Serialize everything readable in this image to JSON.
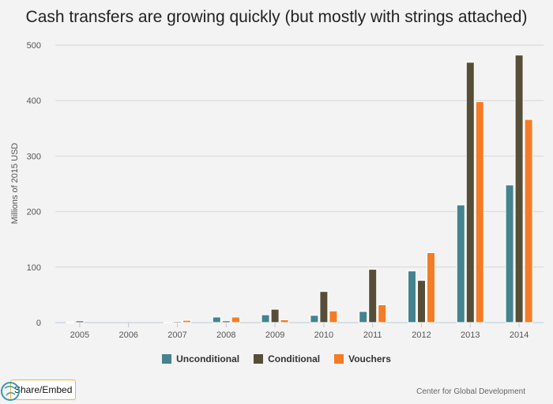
{
  "chart_data": {
    "type": "bar",
    "title": "Cash transfers are growing quickly (but mostly with strings attached)",
    "ylabel": "Millions of 2015 USD",
    "xlabel": "",
    "ylim": [
      0,
      500
    ],
    "yticks": [
      0,
      100,
      200,
      300,
      400,
      500
    ],
    "grid": true,
    "legend": "bottom",
    "categories": [
      "2005",
      "2006",
      "2007",
      "2008",
      "2009",
      "2010",
      "2011",
      "2012",
      "2013",
      "2014"
    ],
    "series": [
      {
        "name": "Unconditional",
        "color": "#44838f",
        "values": [
          0.3,
          0,
          0.3,
          10,
          14,
          13,
          20,
          93,
          212,
          248
        ]
      },
      {
        "name": "Conditional",
        "color": "#574e37",
        "values": [
          3,
          0,
          2,
          3,
          24,
          56,
          96,
          76,
          469,
          482
        ]
      },
      {
        "name": "Vouchers",
        "color": "#f47c27",
        "values": [
          0,
          0,
          4,
          10,
          5,
          21,
          32,
          126,
          398,
          366
        ]
      }
    ]
  },
  "ui": {
    "share_label": "Share/Embed",
    "credit": "Center for Global Development",
    "logo_icon": "globe-icon"
  }
}
